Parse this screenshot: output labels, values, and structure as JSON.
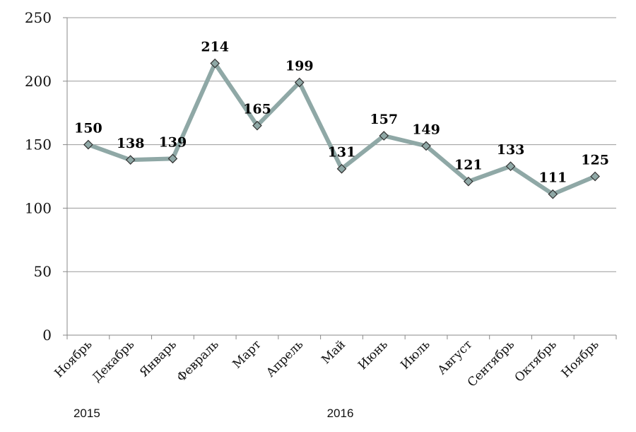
{
  "chart_data": {
    "type": "line",
    "categories": [
      "Ноябрь",
      "Декабрь",
      "Январь",
      "Февраль",
      "Март",
      "Апрель",
      "Май",
      "Июнь",
      "Июль",
      "Август",
      "Сентябрь",
      "Октябрь",
      "Ноябрь"
    ],
    "series": [
      {
        "values": [
          150,
          138,
          139,
          214,
          165,
          199,
          131,
          157,
          149,
          121,
          133,
          111,
          125
        ]
      }
    ],
    "ylim": [
      0,
      250
    ],
    "yticks": [
      0,
      50,
      100,
      150,
      200,
      250
    ],
    "grid": true,
    "data_labels": true,
    "year_labels": [
      {
        "text": "2015",
        "category_index": 0
      },
      {
        "text": "2016",
        "category_index": 6
      }
    ],
    "colors": {
      "line": "#8fa8a6",
      "marker": "#8fa8a6",
      "marker_stroke": "#333333",
      "grid": "#9a9a9a",
      "axis": "#888888"
    }
  }
}
